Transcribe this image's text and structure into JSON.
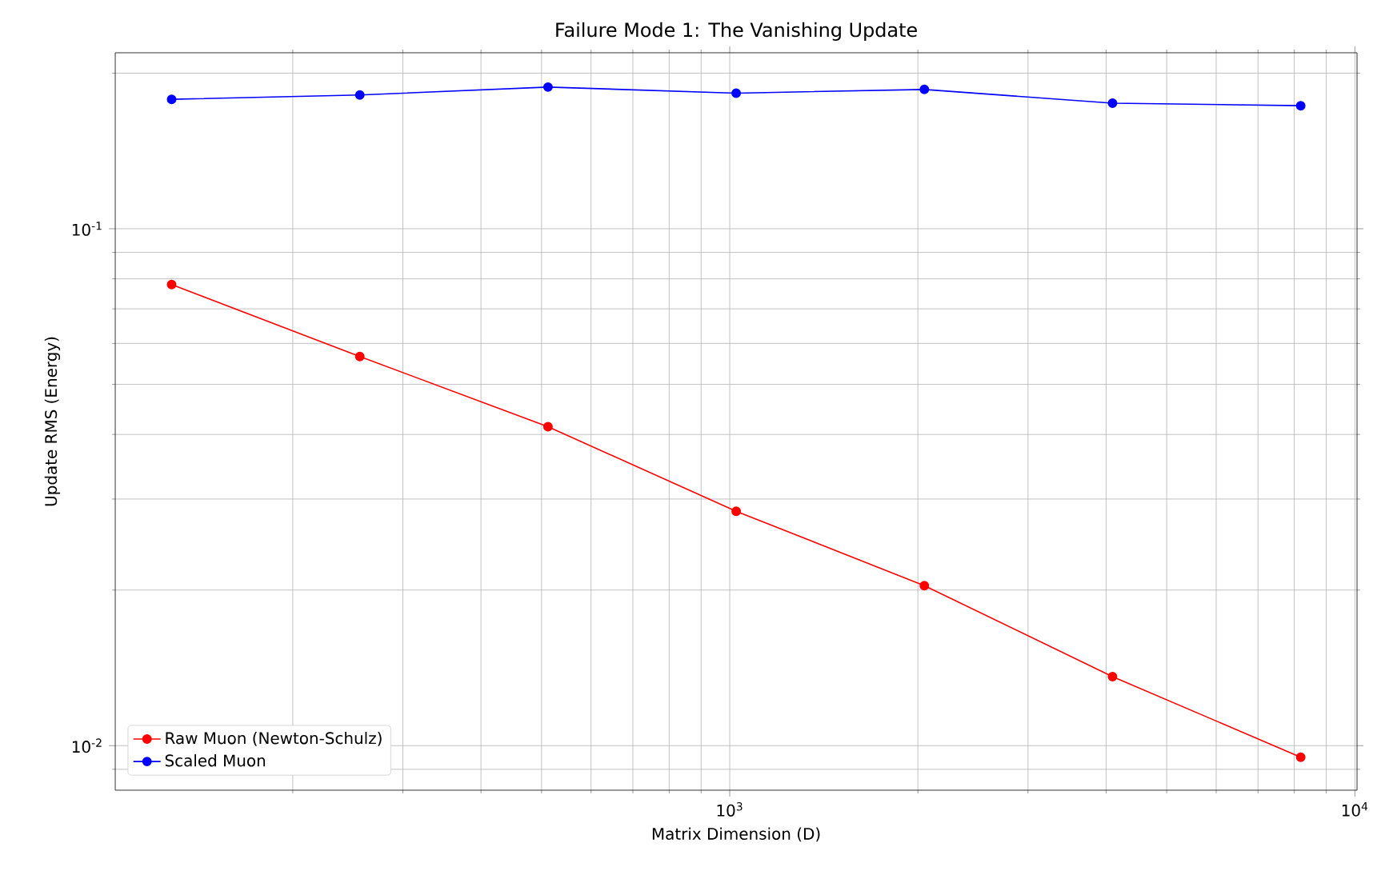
{
  "chart_data": {
    "type": "line",
    "title": "Failure Mode 1: The Vanishing Update",
    "xlabel": "Matrix Dimension (D)",
    "ylabel": "Update RMS (Energy)",
    "x": [
      128,
      256,
      512,
      1024,
      2048,
      4096,
      8192
    ],
    "series": [
      {
        "name": "Raw Muon (Newton-Schulz)",
        "color": "#ff0000",
        "values": [
          0.078,
          0.0566,
          0.0414,
          0.0284,
          0.0204,
          0.0136,
          0.0095
        ]
      },
      {
        "name": "Scaled Muon",
        "color": "#0000ff",
        "values": [
          0.178,
          0.1815,
          0.188,
          0.183,
          0.186,
          0.175,
          0.173
        ]
      }
    ],
    "log": "xy",
    "xlim": [
      104,
      10080
    ],
    "ylim": [
      0.0082,
      0.219
    ],
    "xticks": [
      {
        "value": 1000,
        "label": "10$^{3}$"
      },
      {
        "value": 10000,
        "label": "10$^{4}$"
      }
    ],
    "yticks": [
      {
        "value": 0.01,
        "label": "10$^{-2}$"
      },
      {
        "value": 0.1,
        "label": "10$^{-1}$"
      }
    ],
    "grid": true,
    "legend": "bottom left",
    "marker": "circle",
    "line_style": "solid"
  }
}
